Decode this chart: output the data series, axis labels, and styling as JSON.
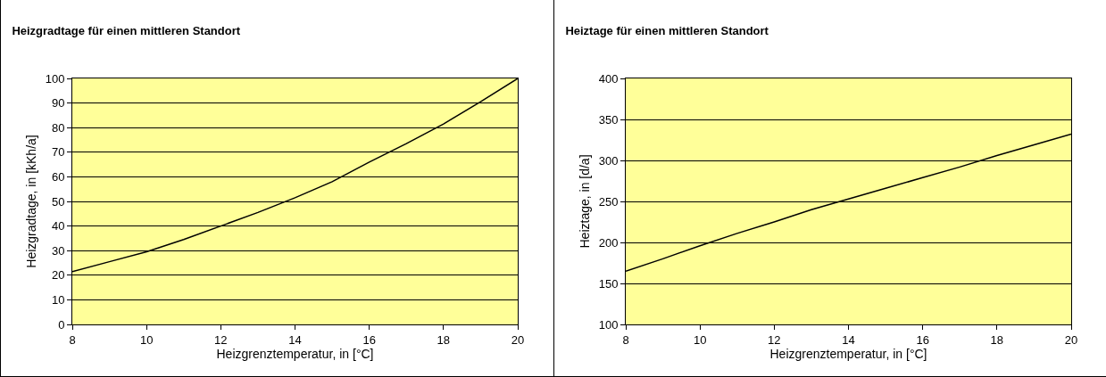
{
  "chart_data": [
    {
      "type": "line",
      "title": "Heizgradtage für einen mittleren Standort",
      "xlabel": "Heizgrenztemperatur, in [°C]",
      "ylabel": "Heizgradtage, in [kKh/a]",
      "x": [
        8,
        9,
        10,
        11,
        12,
        13,
        14,
        15,
        16,
        17,
        18,
        19,
        20
      ],
      "series": [
        {
          "color": "#000000",
          "values": [
            21.5,
            25.5,
            29.5,
            34.5,
            40,
            45.5,
            51.5,
            58,
            66,
            73.5,
            81.5,
            90.5,
            100
          ]
        }
      ],
      "xlim": [
        8,
        20
      ],
      "xticks": [
        8,
        10,
        12,
        14,
        16,
        18,
        20
      ],
      "ylim": [
        0,
        100
      ],
      "yticks": [
        0,
        10,
        20,
        30,
        40,
        50,
        60,
        70,
        80,
        90,
        100
      ],
      "grid": "y",
      "marker": "none",
      "line_style": "solid"
    },
    {
      "type": "line",
      "title": "Heiztage für einen mittleren Standort",
      "xlabel": "Heizgrenztemperatur, in [°C]",
      "ylabel": "Heiztage, in [d/a]",
      "x": [
        8,
        9,
        10,
        11,
        12,
        13,
        14,
        15,
        16,
        17,
        18,
        19,
        20
      ],
      "series": [
        {
          "color": "#000000",
          "values": [
            165,
            180,
            196,
            211,
            225,
            240,
            253,
            266,
            279,
            292,
            306,
            319,
            332
          ]
        }
      ],
      "xlim": [
        8,
        20
      ],
      "xticks": [
        8,
        10,
        12,
        14,
        16,
        18,
        20
      ],
      "ylim": [
        100,
        400
      ],
      "yticks": [
        100,
        150,
        200,
        250,
        300,
        350,
        400
      ],
      "grid": "y",
      "marker": "none",
      "line_style": "solid"
    }
  ]
}
